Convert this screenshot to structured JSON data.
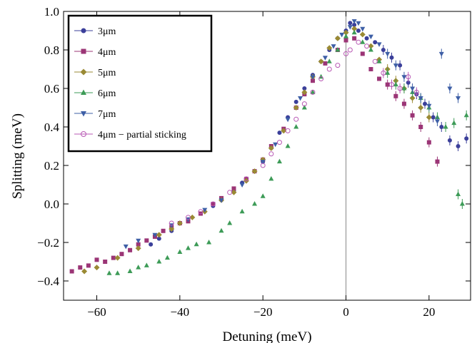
{
  "chart_data": {
    "type": "scatter",
    "title": "",
    "xlabel": "Detuning (meV)",
    "ylabel": "Splitting (meV)",
    "xlim": [
      -68,
      30
    ],
    "ylim": [
      -0.5,
      1.0
    ],
    "xticks": [
      -60,
      -40,
      -20,
      0,
      20
    ],
    "yticks": [
      -0.4,
      -0.2,
      0.0,
      0.2,
      0.4,
      0.6,
      0.8,
      1.0
    ],
    "xtick_labels": [
      "−60",
      "−40",
      "−20",
      "0",
      "20"
    ],
    "ytick_labels": [
      "−0.4",
      "−0.2",
      "0.0",
      "0.2",
      "0.4",
      "0.6",
      "0.8",
      "1.0"
    ],
    "vline_x": 0,
    "legend_position": "top-left",
    "series": [
      {
        "name": "3μm",
        "color": "#3b3f9a",
        "marker": "circle",
        "points": [
          [
            -47,
            -0.21
          ],
          [
            -45,
            -0.18
          ],
          [
            -42,
            -0.14
          ],
          [
            -40,
            -0.1
          ],
          [
            -38,
            -0.08
          ],
          [
            -35,
            -0.05
          ],
          [
            -32,
            -0.01
          ],
          [
            -30,
            0.02
          ],
          [
            -27,
            0.07
          ],
          [
            -25,
            0.11
          ],
          [
            -22,
            0.17
          ],
          [
            -20,
            0.22
          ],
          [
            -18,
            0.29
          ],
          [
            -16,
            0.37
          ],
          [
            -14,
            0.45
          ],
          [
            -12,
            0.53
          ],
          [
            -10,
            0.6
          ],
          [
            -8,
            0.67
          ],
          [
            -6,
            0.74
          ],
          [
            -4,
            0.8
          ],
          [
            -2,
            0.86
          ],
          [
            0,
            0.9
          ],
          [
            1,
            0.94
          ],
          [
            2,
            0.93
          ],
          [
            3,
            0.9
          ],
          [
            5,
            0.86
          ],
          [
            7,
            0.84
          ],
          [
            9,
            0.8
          ],
          [
            11,
            0.76
          ],
          [
            13,
            0.72
          ],
          [
            15,
            0.63
          ],
          [
            17,
            0.57
          ],
          [
            19,
            0.52
          ],
          [
            21,
            0.45
          ],
          [
            23,
            0.4
          ],
          [
            25,
            0.33
          ],
          [
            27,
            0.3
          ],
          [
            29,
            0.34
          ]
        ]
      },
      {
        "name": "4μm",
        "color": "#9b3576",
        "marker": "square",
        "points": [
          [
            -66,
            -0.35
          ],
          [
            -64,
            -0.33
          ],
          [
            -62,
            -0.32
          ],
          [
            -60,
            -0.29
          ],
          [
            -58,
            -0.3
          ],
          [
            -56,
            -0.28
          ],
          [
            -54,
            -0.26
          ],
          [
            -52,
            -0.24
          ],
          [
            -50,
            -0.21
          ],
          [
            -48,
            -0.19
          ],
          [
            -46,
            -0.17
          ],
          [
            -44,
            -0.14
          ],
          [
            -42,
            -0.12
          ],
          [
            -40,
            -0.1
          ],
          [
            -38,
            -0.09
          ],
          [
            -35,
            -0.05
          ],
          [
            -32,
            0.0
          ],
          [
            -30,
            0.03
          ],
          [
            -27,
            0.08
          ],
          [
            -24,
            0.13
          ],
          [
            -22,
            0.17
          ],
          [
            -20,
            0.23
          ],
          [
            -18,
            0.3
          ],
          [
            -15,
            0.39
          ],
          [
            -12,
            0.5
          ],
          [
            -10,
            0.57
          ],
          [
            -8,
            0.64
          ],
          [
            -5,
            0.73
          ],
          [
            -2,
            0.8
          ],
          [
            0,
            0.85
          ],
          [
            2,
            0.86
          ],
          [
            4,
            0.78
          ],
          [
            6,
            0.7
          ],
          [
            8,
            0.65
          ],
          [
            10,
            0.62
          ],
          [
            12,
            0.56
          ],
          [
            14,
            0.52
          ],
          [
            16,
            0.46
          ],
          [
            18,
            0.4
          ],
          [
            20,
            0.32
          ],
          [
            22,
            0.22
          ]
        ]
      },
      {
        "name": "5μm",
        "color": "#9a8a34",
        "marker": "diamond",
        "points": [
          [
            -63,
            -0.35
          ],
          [
            -60,
            -0.33
          ],
          [
            -55,
            -0.28
          ],
          [
            -50,
            -0.23
          ],
          [
            -45,
            -0.16
          ],
          [
            -42,
            -0.13
          ],
          [
            -40,
            -0.1
          ],
          [
            -37,
            -0.07
          ],
          [
            -34,
            -0.04
          ],
          [
            -30,
            0.02
          ],
          [
            -27,
            0.06
          ],
          [
            -24,
            0.12
          ],
          [
            -22,
            0.17
          ],
          [
            -20,
            0.23
          ],
          [
            -18,
            0.29
          ],
          [
            -15,
            0.38
          ],
          [
            -12,
            0.5
          ],
          [
            -10,
            0.58
          ],
          [
            -8,
            0.66
          ],
          [
            -6,
            0.74
          ],
          [
            -4,
            0.81
          ],
          [
            -2,
            0.86
          ],
          [
            0,
            0.89
          ],
          [
            2,
            0.91
          ],
          [
            4,
            0.88
          ],
          [
            6,
            0.82
          ],
          [
            8,
            0.75
          ],
          [
            10,
            0.7
          ],
          [
            12,
            0.64
          ],
          [
            14,
            0.6
          ],
          [
            16,
            0.55
          ],
          [
            18,
            0.5
          ],
          [
            20,
            0.45
          ]
        ]
      },
      {
        "name": "6μm",
        "color": "#3d9b57",
        "marker": "triangle-up",
        "points": [
          [
            -57,
            -0.36
          ],
          [
            -55,
            -0.36
          ],
          [
            -52,
            -0.35
          ],
          [
            -50,
            -0.33
          ],
          [
            -48,
            -0.32
          ],
          [
            -45,
            -0.3
          ],
          [
            -43,
            -0.28
          ],
          [
            -40,
            -0.25
          ],
          [
            -38,
            -0.23
          ],
          [
            -36,
            -0.21
          ],
          [
            -33,
            -0.2
          ],
          [
            -30,
            -0.14
          ],
          [
            -28,
            -0.1
          ],
          [
            -25,
            -0.04
          ],
          [
            -22,
            -0.0
          ],
          [
            -20,
            0.04
          ],
          [
            -18,
            0.13
          ],
          [
            -16,
            0.22
          ],
          [
            -14,
            0.3
          ],
          [
            -12,
            0.4
          ],
          [
            -10,
            0.5
          ],
          [
            -8,
            0.58
          ],
          [
            -6,
            0.66
          ],
          [
            -4,
            0.74
          ],
          [
            -2,
            0.8
          ],
          [
            0,
            0.87
          ],
          [
            2,
            0.89
          ],
          [
            4,
            0.84
          ],
          [
            6,
            0.8
          ],
          [
            8,
            0.74
          ],
          [
            10,
            0.68
          ],
          [
            12,
            0.62
          ],
          [
            14,
            0.6
          ],
          [
            16,
            0.58
          ],
          [
            18,
            0.55
          ],
          [
            20,
            0.5
          ],
          [
            22,
            0.45
          ],
          [
            24,
            0.4
          ],
          [
            26,
            0.42
          ],
          [
            27,
            0.05
          ],
          [
            28,
            0.0
          ],
          [
            29,
            0.46
          ]
        ]
      },
      {
        "name": "7μm",
        "color": "#3e5fa6",
        "marker": "triangle-down",
        "points": [
          [
            -53,
            -0.22
          ],
          [
            -50,
            -0.19
          ],
          [
            -46,
            -0.16
          ],
          [
            -42,
            -0.11
          ],
          [
            -38,
            -0.08
          ],
          [
            -34,
            -0.03
          ],
          [
            -30,
            0.02
          ],
          [
            -25,
            0.1
          ],
          [
            -20,
            0.22
          ],
          [
            -17,
            0.31
          ],
          [
            -14,
            0.44
          ],
          [
            -11,
            0.55
          ],
          [
            -8,
            0.66
          ],
          [
            -5,
            0.76
          ],
          [
            -3,
            0.82
          ],
          [
            -1,
            0.88
          ],
          [
            1,
            0.92
          ],
          [
            2,
            0.95
          ],
          [
            3,
            0.94
          ],
          [
            4,
            0.91
          ],
          [
            6,
            0.87
          ],
          [
            8,
            0.83
          ],
          [
            10,
            0.78
          ],
          [
            12,
            0.72
          ],
          [
            14,
            0.66
          ],
          [
            16,
            0.6
          ],
          [
            18,
            0.55
          ],
          [
            20,
            0.51
          ],
          [
            22,
            0.43
          ],
          [
            23,
            0.78
          ],
          [
            25,
            0.6
          ],
          [
            27,
            0.55
          ]
        ]
      },
      {
        "name": "4μm − partial sticking",
        "color": "#b858b4",
        "marker": "open-circle",
        "points": [
          [
            -42,
            -0.1
          ],
          [
            -38,
            -0.07
          ],
          [
            -35,
            -0.04
          ],
          [
            -32,
            0.0
          ],
          [
            -28,
            0.06
          ],
          [
            -24,
            0.13
          ],
          [
            -20,
            0.2
          ],
          [
            -18,
            0.26
          ],
          [
            -16,
            0.32
          ],
          [
            -14,
            0.38
          ],
          [
            -12,
            0.44
          ],
          [
            -10,
            0.52
          ],
          [
            -8,
            0.58
          ],
          [
            -6,
            0.65
          ],
          [
            -4,
            0.7
          ],
          [
            -2,
            0.72
          ],
          [
            0,
            0.78
          ],
          [
            1,
            0.8
          ],
          [
            3,
            0.84
          ],
          [
            5,
            0.82
          ],
          [
            7,
            0.74
          ],
          [
            9,
            0.68
          ],
          [
            11,
            0.62
          ],
          [
            13,
            0.6
          ],
          [
            15,
            0.66
          ],
          [
            17,
            0.58
          ]
        ]
      }
    ]
  }
}
